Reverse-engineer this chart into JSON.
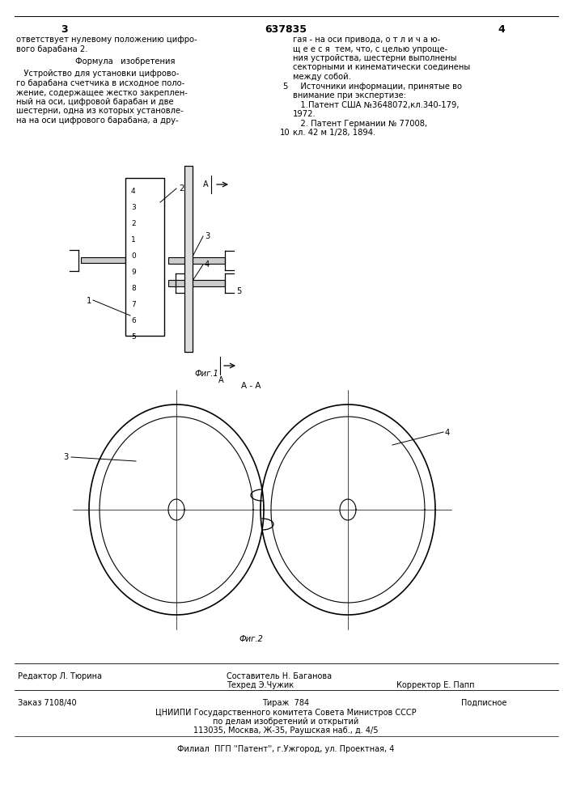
{
  "page_color": "#ffffff",
  "patent_number": "637835",
  "page_left": "3",
  "page_right": "4",
  "header_text_left": [
    "ответствует нулевому положению цифро-",
    "вого барабана 2."
  ],
  "formula_header": "Формула   изобретения",
  "formula_text": [
    "   Устройство для установки цифрово-",
    "го барабана счетчика в исходное поло-",
    "жение, содержащее жестко закреплен-",
    "ный на оси, цифровой барабан и две",
    "шестерни, одна из которых установле-",
    "на на оси цифрового барабана, а дру-"
  ],
  "header_text_right": [
    "гая - на оси привода, о т л и ч а ю-",
    "щ е е с я  тем, что, с целью упроще-",
    "ния устройства, шестерни выполнены",
    "секторными и кинематически соединены",
    "между собой.",
    "   Источники информации, принятые во",
    "внимание при экспертизе:",
    "   1.Патент США №3648072,кл.340-179,",
    "1972.",
    "   2. Патент Германии № 77008,",
    "кл. 42 м 1/28, 1894."
  ],
  "line_number_5": "5",
  "line_number_10": "10",
  "fig1_label": "Фиг.1",
  "fig2_label": "Фиг.2",
  "section_label": "А - А",
  "footer_col1_row1": "Редактор Л. Тюрина",
  "footer_col2_row1": "Составитель Н. Баганова",
  "footer_col2_row2": "Техред Э.Чужик",
  "footer_col3_row2": "Корректор Е. Папп",
  "footer_zakaz": "Заказ 7108/40",
  "footer_tirazh": "Тираж  784",
  "footer_podpisnoe": "Подписное",
  "footer_tsniipi": "ЦНИИПИ Государственного комитета Совета Министров СССР",
  "footer_po_delam": "по делам изобретений и открытий",
  "footer_address": "113035, Москва, Ж-35, Раушская наб., д. 4/5",
  "footer_filial": "Филиал  ПГП ''Патент'', г.Ужгород, ул. Проектная, 4",
  "drum_digits": [
    "4",
    "3",
    "2",
    "1",
    "0",
    "9",
    "8",
    "7",
    "6",
    "5"
  ],
  "label_1": "1",
  "label_2": "2",
  "label_3": "3",
  "label_4": "4",
  "label_5": "5",
  "label_A": "A",
  "label_fig2_3": "3",
  "label_fig2_4": "4"
}
